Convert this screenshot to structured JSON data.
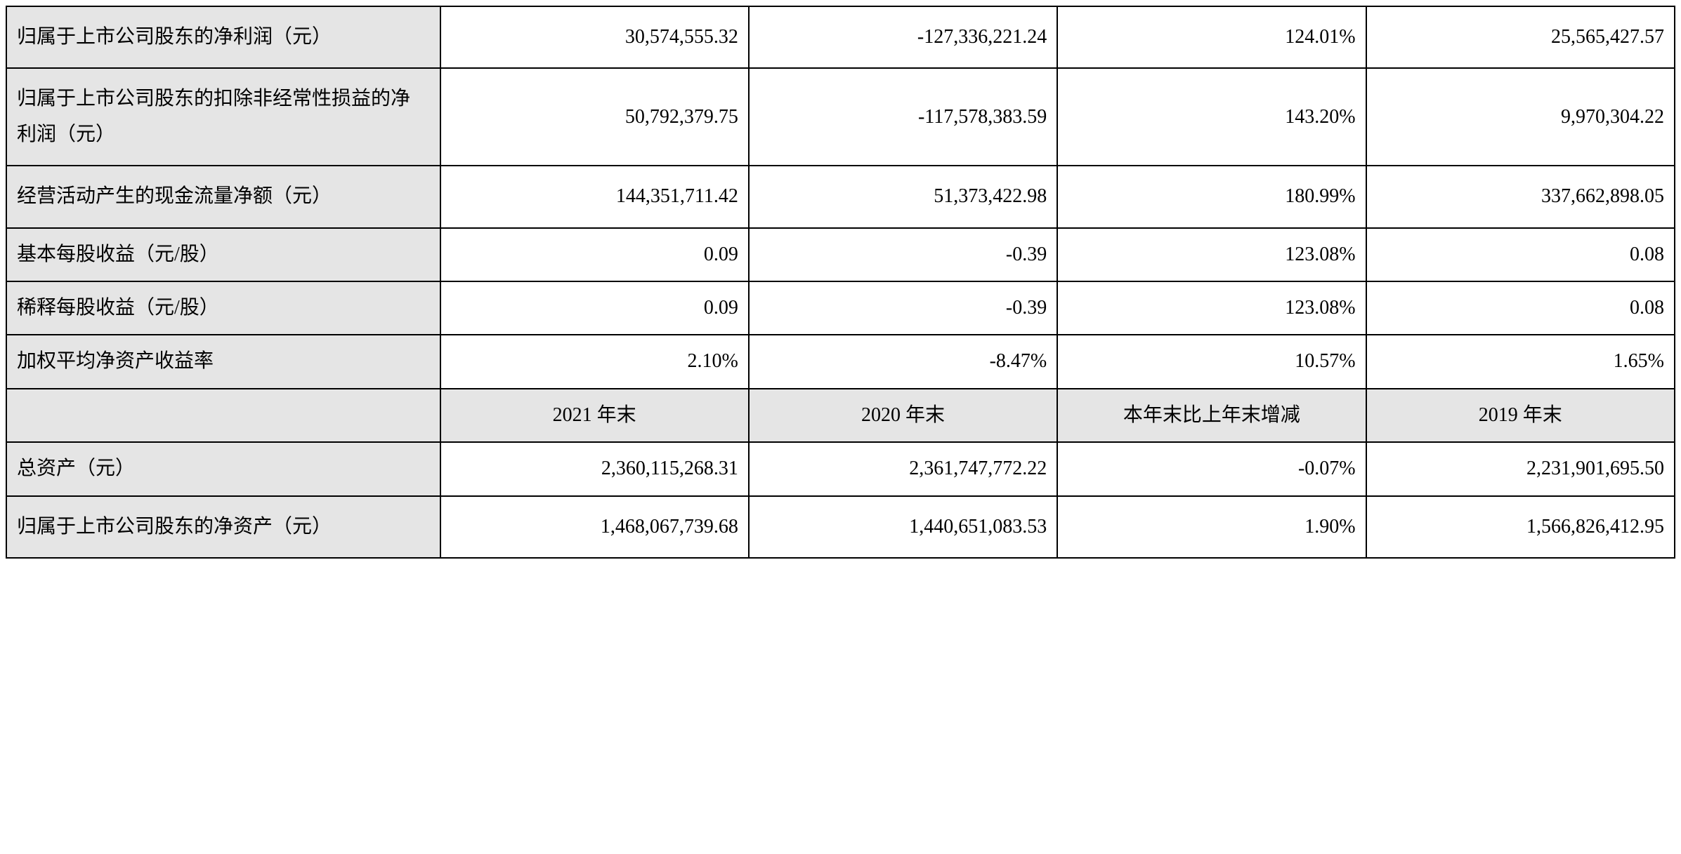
{
  "table": {
    "rows": [
      {
        "label": "归属于上市公司股东的净利润（元）",
        "c1": "30,574,555.32",
        "c2": "-127,336,221.24",
        "c3": "124.01%",
        "c4": "25,565,427.57",
        "tall": true
      },
      {
        "label": "归属于上市公司股东的扣除非经常性损益的净利润（元）",
        "c1": "50,792,379.75",
        "c2": "-117,578,383.59",
        "c3": "143.20%",
        "c4": "9,970,304.22",
        "tall": true
      },
      {
        "label": "经营活动产生的现金流量净额（元）",
        "c1": "144,351,711.42",
        "c2": "51,373,422.98",
        "c3": "180.99%",
        "c4": "337,662,898.05",
        "tall": true
      },
      {
        "label": "基本每股收益（元/股）",
        "c1": "0.09",
        "c2": "-0.39",
        "c3": "123.08%",
        "c4": "0.08",
        "tall": false
      },
      {
        "label": "稀释每股收益（元/股）",
        "c1": "0.09",
        "c2": "-0.39",
        "c3": "123.08%",
        "c4": "0.08",
        "tall": false
      },
      {
        "label": "加权平均净资产收益率",
        "c1": "2.10%",
        "c2": "-8.47%",
        "c3": "10.57%",
        "c4": "1.65%",
        "tall": false
      }
    ],
    "header2": {
      "c0": "",
      "c1": "2021 年末",
      "c2": "2020 年末",
      "c3": "本年末比上年末增减",
      "c4": "2019 年末"
    },
    "rows2": [
      {
        "label": "总资产（元）",
        "c1": "2,360,115,268.31",
        "c2": "2,361,747,772.22",
        "c3": "-0.07%",
        "c4": "2,231,901,695.50",
        "tall": false
      },
      {
        "label": "归属于上市公司股东的净资产（元）",
        "c1": "1,468,067,739.68",
        "c2": "1,440,651,083.53",
        "c3": "1.90%",
        "c4": "1,566,826,412.95",
        "tall": true
      }
    ],
    "styling": {
      "border_color": "#000000",
      "header_bg": "#e5e5e5",
      "value_bg": "#ffffff",
      "font_size": 28,
      "font_family": "SimSun"
    }
  }
}
